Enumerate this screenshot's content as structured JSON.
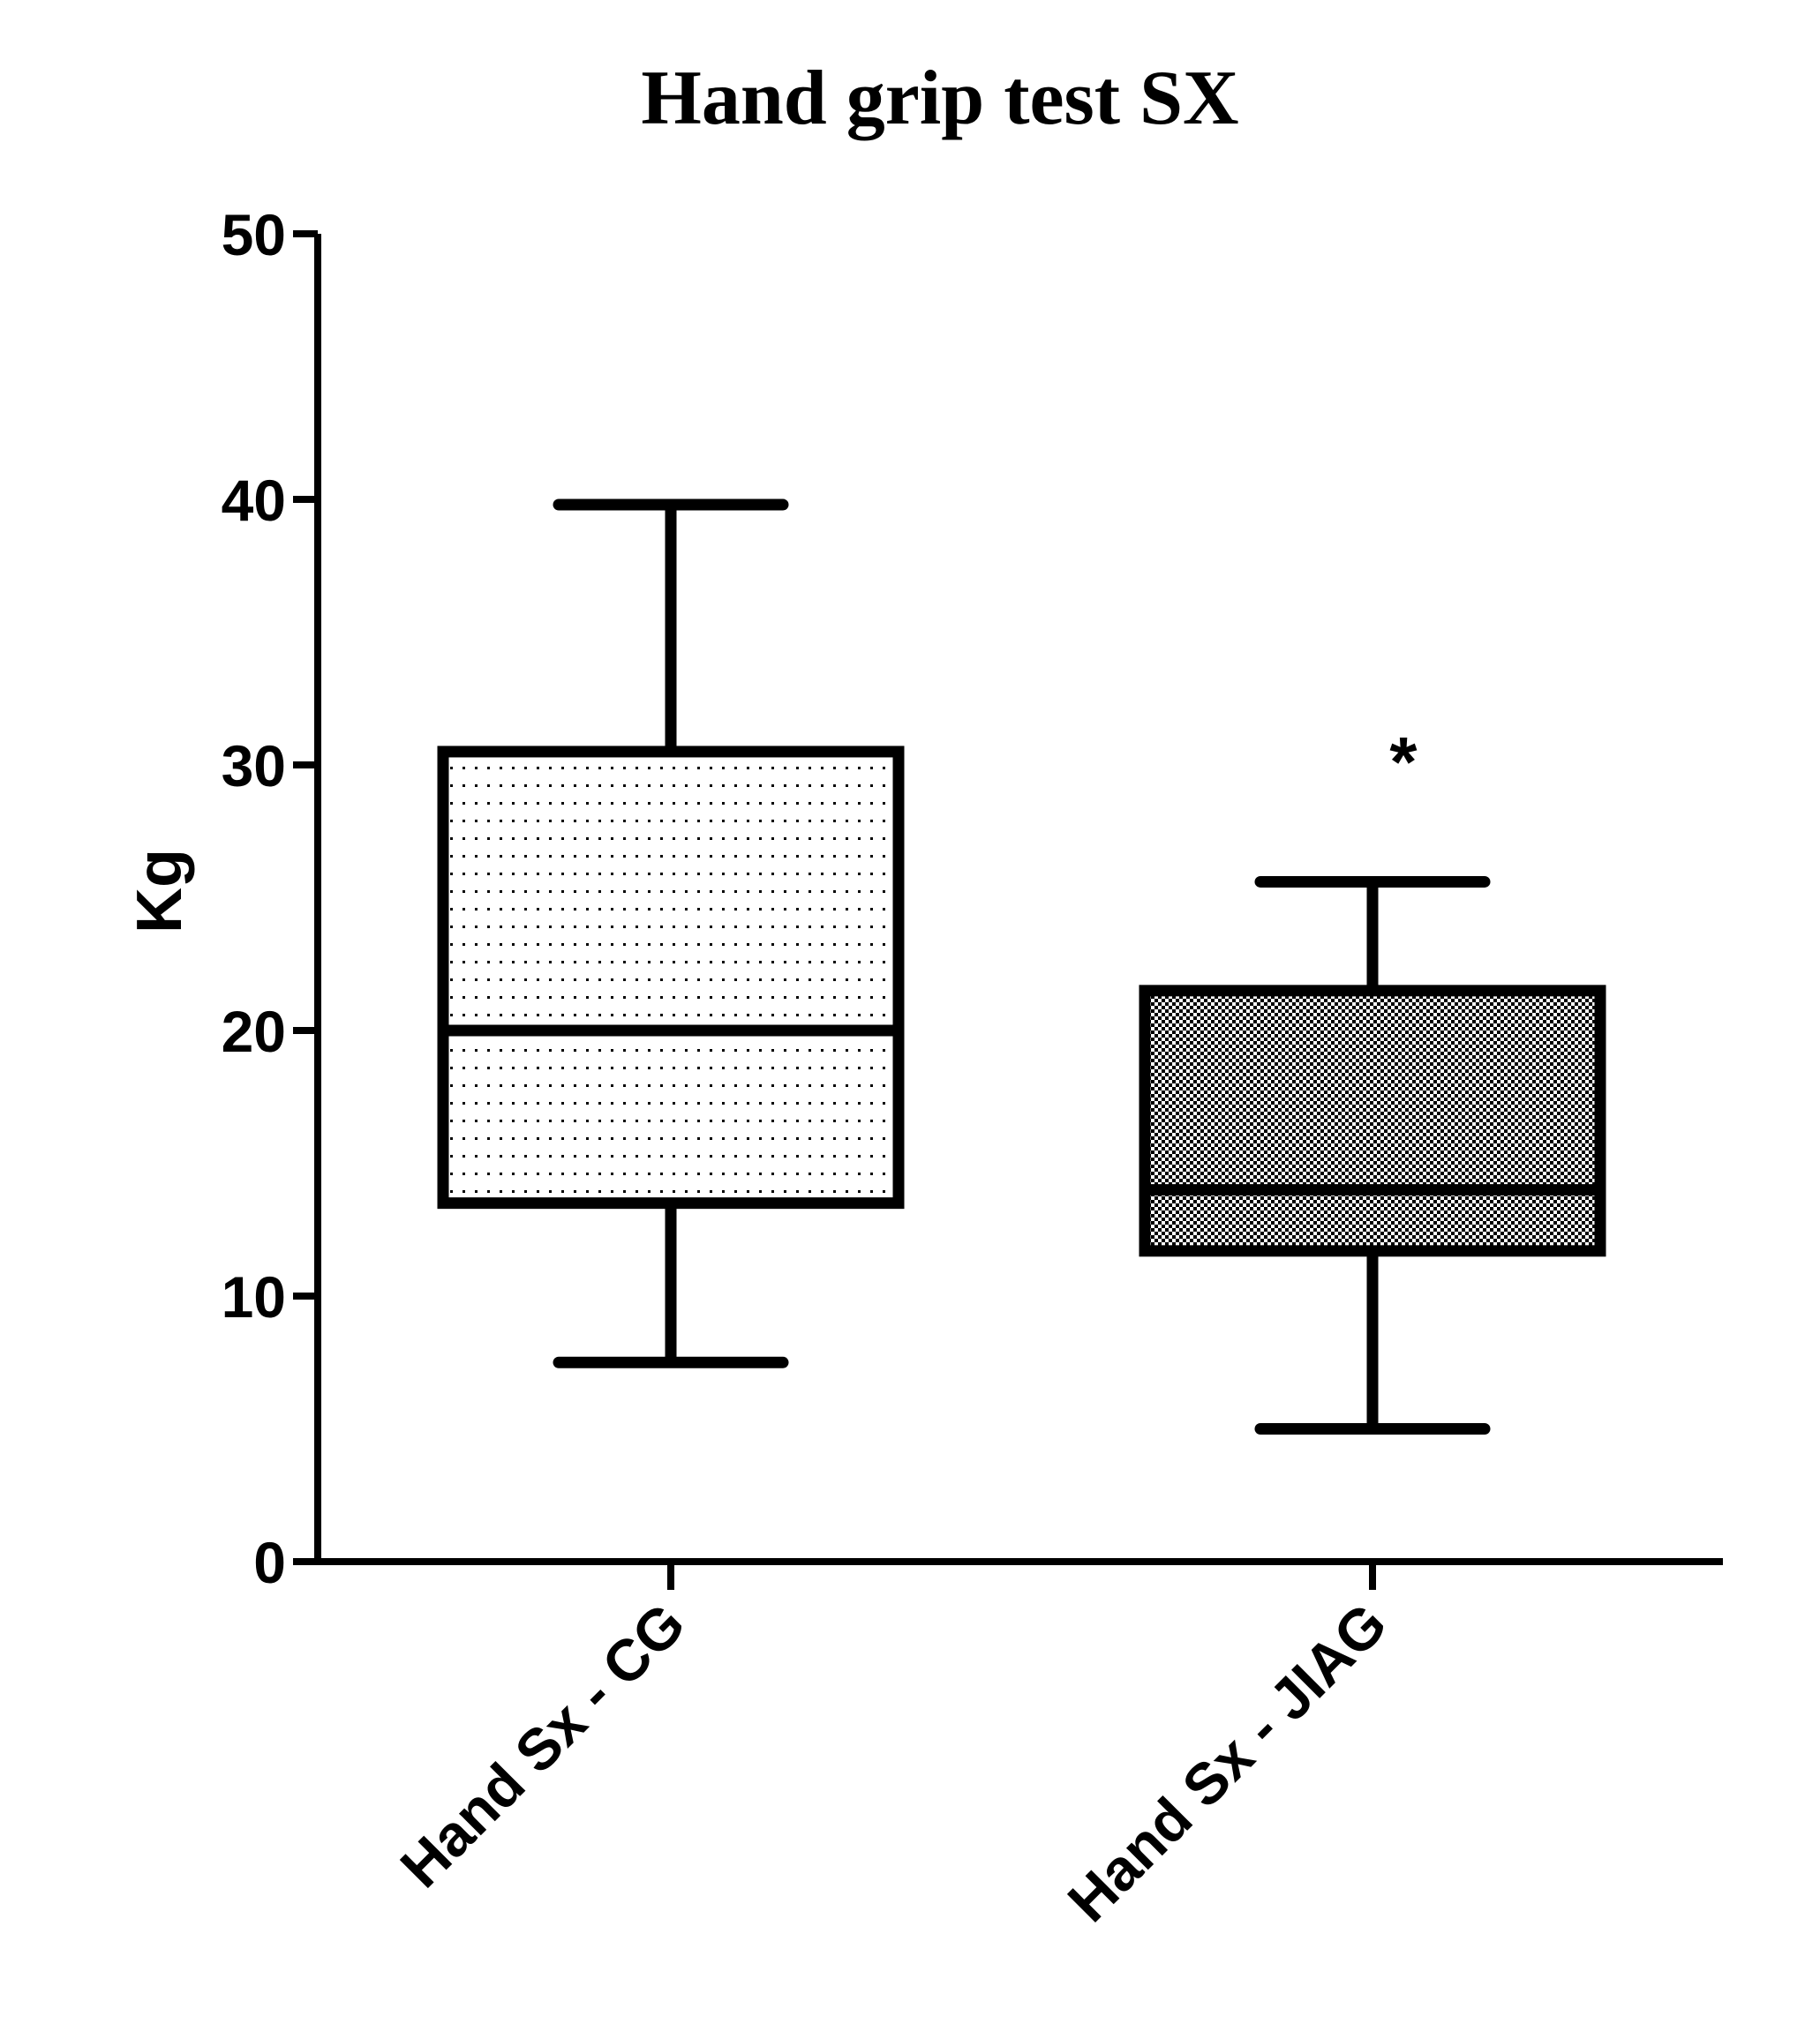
{
  "chart_data": {
    "type": "box",
    "title": "Hand grip test SX",
    "xlabel": "",
    "ylabel": "Kg",
    "ylim": [
      0,
      50
    ],
    "yticks": [
      0,
      10,
      20,
      30,
      40,
      50
    ],
    "ytick_labels": [
      "0",
      "10",
      "20",
      "30",
      "40",
      "50"
    ],
    "grid": false,
    "categories": [
      "Hand Sx - CG",
      "Hand Sx - JIAG"
    ],
    "boxes": [
      {
        "category": "Hand Sx - CG",
        "min": 7.5,
        "q1": 13.5,
        "median": 20,
        "q3": 30.5,
        "max": 39.8,
        "fill": "fine-dots",
        "annotation": ""
      },
      {
        "category": "Hand Sx - JIAG",
        "min": 5,
        "q1": 11.7,
        "median": 14,
        "q3": 21.5,
        "max": 25.6,
        "fill": "checkerboard",
        "annotation": "*"
      }
    ],
    "colors": {
      "line": "#000000",
      "background": "#ffffff"
    }
  }
}
